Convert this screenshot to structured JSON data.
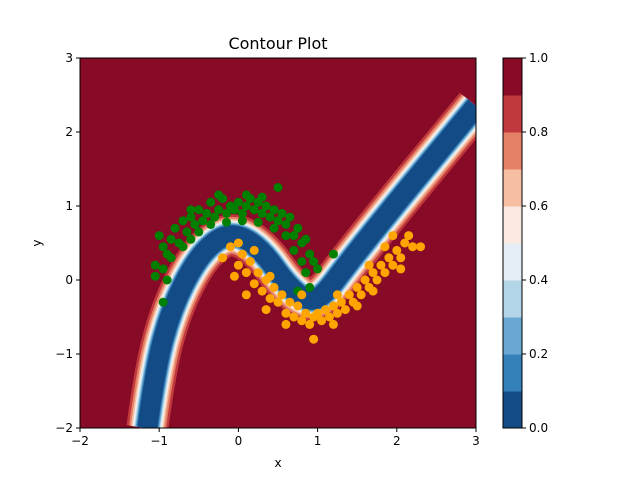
{
  "chart_data": {
    "type": "scatter",
    "title": "Contour Plot",
    "xlabel": "x",
    "ylabel": "y",
    "xlim": [
      -2,
      3
    ],
    "ylim": [
      -2,
      3
    ],
    "x_ticks": [
      -2,
      -1,
      0,
      1,
      2,
      3
    ],
    "y_ticks": [
      -2,
      -1,
      0,
      1,
      2,
      3
    ],
    "x_tick_labels": [
      "−2",
      "−1",
      "0",
      "1",
      "2",
      "3"
    ],
    "y_tick_labels": [
      "−2",
      "−1",
      "0",
      "1",
      "2",
      "3"
    ],
    "grid": false,
    "background_color": "#870a26",
    "contour_band": {
      "description_levels": [
        0.0,
        0.1,
        0.2,
        0.3,
        0.4,
        0.5,
        0.6,
        0.7,
        0.8,
        0.9,
        1.0
      ],
      "centerline": [
        [
          -1.15,
          -2.0
        ],
        [
          -1.05,
          -1.2
        ],
        [
          -0.85,
          -0.4
        ],
        [
          -0.55,
          0.25
        ],
        [
          -0.25,
          0.58
        ],
        [
          0.0,
          0.62
        ],
        [
          0.3,
          0.4
        ],
        [
          0.6,
          -0.05
        ],
        [
          0.85,
          -0.28
        ],
        [
          1.05,
          -0.25
        ],
        [
          1.4,
          0.25
        ],
        [
          2.0,
          1.05
        ],
        [
          2.5,
          1.7
        ],
        [
          3.0,
          2.35
        ]
      ]
    },
    "colorbar": {
      "min": 0.0,
      "max": 1.0,
      "tick_values": [
        0.0,
        0.2,
        0.4,
        0.6,
        0.8,
        1.0
      ],
      "tick_labels": [
        "0.0",
        "0.2",
        "0.4",
        "0.6",
        "0.8",
        "1.0"
      ],
      "band_colors": [
        "#134b87",
        "#3480b9",
        "#6aa8d1",
        "#b3d5e8",
        "#e4eef4",
        "#faeae1",
        "#f6bfa3",
        "#e48167",
        "#c1393c",
        "#870a26"
      ]
    },
    "series": [
      {
        "color": "#008000",
        "points": [
          [
            -1.0,
            0.6
          ],
          [
            -0.95,
            0.45
          ],
          [
            -0.9,
            0.35
          ],
          [
            -0.85,
            0.55
          ],
          [
            -0.8,
            0.7
          ],
          [
            -0.75,
            0.5
          ],
          [
            -0.7,
            0.8
          ],
          [
            -0.65,
            0.65
          ],
          [
            -0.6,
            0.85
          ],
          [
            -0.55,
            0.75
          ],
          [
            -0.5,
            0.95
          ],
          [
            -0.45,
            0.8
          ],
          [
            -0.4,
            0.9
          ],
          [
            -0.35,
            1.05
          ],
          [
            -0.3,
            0.85
          ],
          [
            -0.25,
            0.95
          ],
          [
            -0.2,
            1.1
          ],
          [
            -0.15,
            0.9
          ],
          [
            -0.1,
            1.0
          ],
          [
            -0.05,
            0.95
          ],
          [
            0.0,
            1.05
          ],
          [
            0.05,
            0.9
          ],
          [
            0.1,
            1.0
          ],
          [
            0.15,
            1.1
          ],
          [
            0.2,
            0.95
          ],
          [
            0.25,
            1.05
          ],
          [
            0.3,
            0.9
          ],
          [
            0.35,
            1.0
          ],
          [
            0.4,
            0.85
          ],
          [
            0.45,
            0.95
          ],
          [
            0.5,
            0.8
          ],
          [
            0.55,
            0.9
          ],
          [
            0.6,
            0.75
          ],
          [
            0.65,
            0.85
          ],
          [
            0.7,
            0.6
          ],
          [
            0.75,
            0.7
          ],
          [
            0.8,
            0.5
          ],
          [
            0.85,
            0.55
          ],
          [
            0.9,
            0.35
          ],
          [
            0.95,
            0.25
          ],
          [
            1.0,
            0.15
          ],
          [
            -1.05,
            0.2
          ],
          [
            -0.95,
            0.15
          ],
          [
            -0.85,
            0.3
          ],
          [
            -0.7,
            0.45
          ],
          [
            -0.6,
            0.55
          ],
          [
            -0.5,
            0.65
          ],
          [
            -0.35,
            0.75
          ],
          [
            -0.15,
            0.78
          ],
          [
            0.05,
            0.8
          ],
          [
            0.25,
            0.78
          ],
          [
            0.45,
            0.7
          ],
          [
            0.6,
            0.6
          ],
          [
            0.7,
            0.4
          ],
          [
            0.8,
            0.25
          ],
          [
            0.85,
            0.1
          ],
          [
            0.9,
            -0.1
          ],
          [
            0.75,
            -0.15
          ],
          [
            -0.95,
            -0.3
          ],
          [
            1.2,
            0.35
          ],
          [
            0.5,
            1.25
          ],
          [
            -0.6,
            0.95
          ],
          [
            -0.25,
            1.15
          ],
          [
            0.1,
            1.15
          ],
          [
            0.3,
            1.12
          ],
          [
            -1.05,
            0.05
          ],
          [
            -0.9,
            0.0
          ]
        ],
        "marker": "circle"
      },
      {
        "color": "#ffa500",
        "points": [
          [
            -0.2,
            0.3
          ],
          [
            -0.1,
            0.45
          ],
          [
            0.0,
            0.2
          ],
          [
            0.05,
            0.35
          ],
          [
            0.1,
            0.1
          ],
          [
            0.15,
            0.25
          ],
          [
            0.2,
            -0.05
          ],
          [
            0.25,
            0.1
          ],
          [
            0.3,
            -0.15
          ],
          [
            0.35,
            0.0
          ],
          [
            0.4,
            -0.25
          ],
          [
            0.45,
            -0.1
          ],
          [
            0.5,
            -0.3
          ],
          [
            0.55,
            -0.2
          ],
          [
            0.6,
            -0.45
          ],
          [
            0.65,
            -0.3
          ],
          [
            0.7,
            -0.5
          ],
          [
            0.75,
            -0.35
          ],
          [
            0.8,
            -0.55
          ],
          [
            0.85,
            -0.45
          ],
          [
            0.9,
            -0.6
          ],
          [
            0.95,
            -0.5
          ],
          [
            1.0,
            -0.45
          ],
          [
            1.05,
            -0.55
          ],
          [
            1.1,
            -0.4
          ],
          [
            1.15,
            -0.5
          ],
          [
            1.2,
            -0.35
          ],
          [
            1.25,
            -0.45
          ],
          [
            1.3,
            -0.3
          ],
          [
            1.35,
            -0.4
          ],
          [
            1.4,
            -0.2
          ],
          [
            1.45,
            -0.3
          ],
          [
            1.5,
            -0.1
          ],
          [
            1.55,
            -0.2
          ],
          [
            1.6,
            0.0
          ],
          [
            1.65,
            -0.1
          ],
          [
            1.7,
            0.1
          ],
          [
            1.75,
            0.0
          ],
          [
            1.8,
            0.2
          ],
          [
            1.85,
            0.1
          ],
          [
            1.9,
            0.3
          ],
          [
            1.95,
            0.2
          ],
          [
            2.0,
            0.4
          ],
          [
            2.05,
            0.3
          ],
          [
            2.1,
            0.5
          ],
          [
            2.2,
            0.45
          ],
          [
            2.3,
            0.45
          ],
          [
            2.15,
            0.6
          ],
          [
            1.95,
            0.6
          ],
          [
            0.95,
            -0.8
          ],
          [
            0.0,
            0.5
          ],
          [
            -0.05,
            0.05
          ],
          [
            0.1,
            -0.2
          ],
          [
            0.35,
            -0.4
          ],
          [
            0.6,
            -0.6
          ],
          [
            1.2,
            -0.6
          ],
          [
            1.5,
            -0.35
          ],
          [
            1.7,
            -0.15
          ],
          [
            0.2,
            0.4
          ],
          [
            0.4,
            0.05
          ],
          [
            0.8,
            -0.2
          ],
          [
            1.25,
            -0.2
          ],
          [
            1.65,
            0.2
          ],
          [
            1.85,
            0.45
          ],
          [
            2.05,
            0.15
          ]
        ],
        "marker": "circle"
      }
    ]
  }
}
